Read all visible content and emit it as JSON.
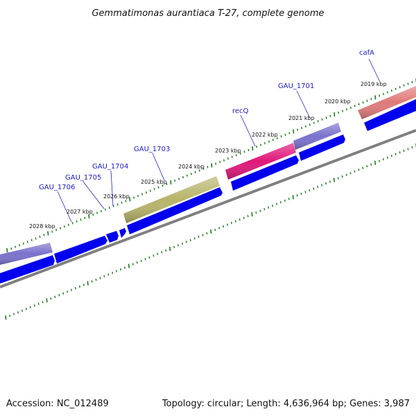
{
  "title": "Gemmatimonas aurantiaca T-27, complete genome",
  "footer": {
    "accession": "Accession: NC_012489",
    "summary": "Topology: circular; Length: 4,636,964 bp; Genes: 3,987"
  },
  "colors": {
    "tick": "#1a7a1a",
    "gene_label": "#1a1acc",
    "callout_line": "#2222cc",
    "cds": "#0000ee",
    "backbone": "#808080"
  },
  "tick_labels": [
    "2019 kbp",
    "2020 kbp",
    "2021 kbp",
    "2022 kbp",
    "2023 kbp",
    "2024 kbp",
    "2025 kbp",
    "2026 kbp",
    "2027 kbp",
    "2028 kbp"
  ],
  "gene_labels": [
    "cafA",
    "GAU_1701",
    "recQ",
    "GAU_1703",
    "GAU_1704",
    "GAU_1705",
    "GAU_1706"
  ],
  "feature_colors": {
    "cafA": "#e07a7a",
    "GAU_1701": "#7a72cc",
    "recQ": "#e0187a",
    "GAU_1703": "#b8b46a",
    "GAU_1706": "#7a72cc"
  }
}
